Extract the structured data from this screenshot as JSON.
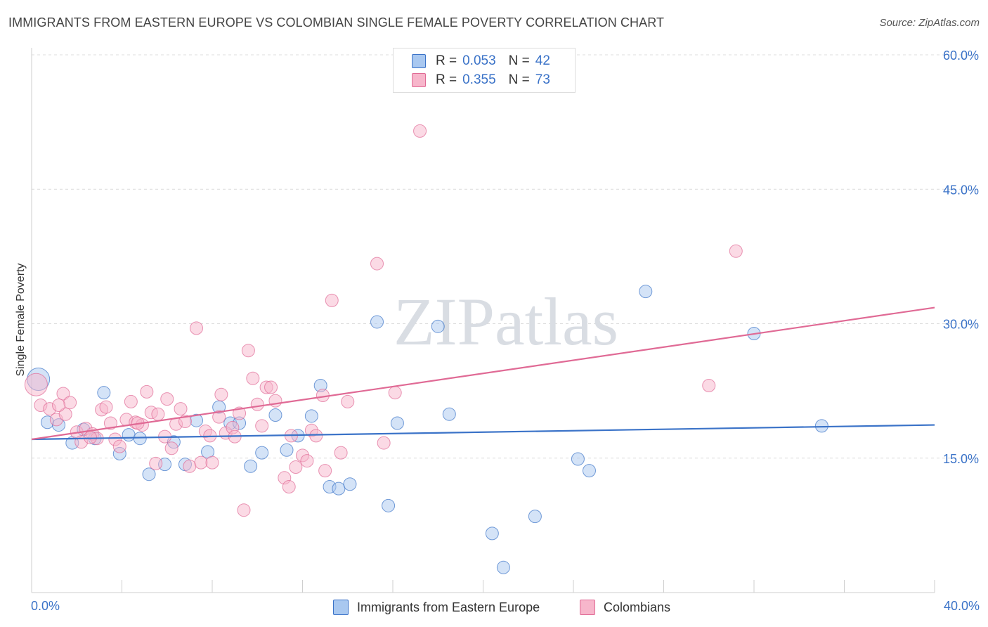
{
  "chart_data": {
    "type": "scatter",
    "title": "IMMIGRANTS FROM EASTERN EUROPE VS COLOMBIAN SINGLE FEMALE POVERTY CORRELATION CHART",
    "source": "Source: ZipAtlas.com",
    "ylabel": "Single Female Poverty",
    "xlim": [
      0,
      40
    ],
    "ylim": [
      0,
      60
    ],
    "x_tick_labels": [
      "0.0%",
      "40.0%"
    ],
    "y_ticks": [
      15,
      30,
      45,
      60
    ],
    "y_tick_labels": [
      "15.0%",
      "30.0%",
      "45.0%",
      "60.0%"
    ],
    "watermark": "ZIPatlas",
    "colors": {
      "blue": "#3b73c8",
      "blue_fill": "#a9c8f0",
      "pink": "#e06a95",
      "pink_fill": "#f7b6cb"
    },
    "legend": [
      {
        "name": "Immigrants from Eastern Europe",
        "r_label": "R =",
        "r": "0.053",
        "n_label": "N =",
        "n": "42"
      },
      {
        "name": "Colombians",
        "r_label": "R =",
        "r": "0.355",
        "n_label": "N =",
        "n": "73"
      }
    ],
    "series": [
      {
        "name": "Immigrants from Eastern Europe",
        "trend": {
          "x": [
            0,
            40
          ],
          "y": [
            17.1,
            18.7
          ]
        },
        "points": [
          {
            "x": 0.3,
            "y": 23.8,
            "big": true
          },
          {
            "x": 0.7,
            "y": 19.0
          },
          {
            "x": 1.2,
            "y": 18.7
          },
          {
            "x": 1.8,
            "y": 16.7
          },
          {
            "x": 2.3,
            "y": 18.2
          },
          {
            "x": 2.8,
            "y": 17.2
          },
          {
            "x": 3.2,
            "y": 22.3
          },
          {
            "x": 3.9,
            "y": 15.5
          },
          {
            "x": 4.3,
            "y": 17.6
          },
          {
            "x": 4.8,
            "y": 17.2
          },
          {
            "x": 5.2,
            "y": 13.2
          },
          {
            "x": 5.9,
            "y": 14.3
          },
          {
            "x": 6.3,
            "y": 16.8
          },
          {
            "x": 6.8,
            "y": 14.3
          },
          {
            "x": 7.3,
            "y": 19.2
          },
          {
            "x": 7.8,
            "y": 15.7
          },
          {
            "x": 8.3,
            "y": 20.7
          },
          {
            "x": 8.8,
            "y": 18.9
          },
          {
            "x": 9.2,
            "y": 18.9
          },
          {
            "x": 9.7,
            "y": 14.1
          },
          {
            "x": 10.2,
            "y": 15.6
          },
          {
            "x": 10.8,
            "y": 19.8
          },
          {
            "x": 11.3,
            "y": 15.9
          },
          {
            "x": 11.8,
            "y": 17.5
          },
          {
            "x": 12.4,
            "y": 19.7
          },
          {
            "x": 12.8,
            "y": 23.1
          },
          {
            "x": 13.2,
            "y": 11.8
          },
          {
            "x": 13.6,
            "y": 11.6
          },
          {
            "x": 14.1,
            "y": 12.1
          },
          {
            "x": 15.3,
            "y": 30.2
          },
          {
            "x": 15.8,
            "y": 9.7
          },
          {
            "x": 16.2,
            "y": 18.9
          },
          {
            "x": 18.0,
            "y": 29.7
          },
          {
            "x": 18.5,
            "y": 19.9
          },
          {
            "x": 20.4,
            "y": 6.6
          },
          {
            "x": 20.9,
            "y": 2.8
          },
          {
            "x": 22.3,
            "y": 8.5
          },
          {
            "x": 24.2,
            "y": 14.9
          },
          {
            "x": 24.7,
            "y": 13.6
          },
          {
            "x": 27.2,
            "y": 33.6
          },
          {
            "x": 32.0,
            "y": 28.9
          },
          {
            "x": 35.0,
            "y": 18.6
          }
        ]
      },
      {
        "name": "Colombians",
        "trend": {
          "x": [
            0,
            40
          ],
          "y": [
            17.1,
            31.8
          ]
        },
        "points": [
          {
            "x": 0.2,
            "y": 23.2,
            "big": true
          },
          {
            "x": 0.4,
            "y": 20.9
          },
          {
            "x": 0.8,
            "y": 20.5
          },
          {
            "x": 1.1,
            "y": 19.3
          },
          {
            "x": 1.4,
            "y": 22.2
          },
          {
            "x": 1.5,
            "y": 19.9
          },
          {
            "x": 1.7,
            "y": 21.2
          },
          {
            "x": 2.0,
            "y": 17.9
          },
          {
            "x": 2.2,
            "y": 16.8
          },
          {
            "x": 2.4,
            "y": 18.3
          },
          {
            "x": 2.7,
            "y": 17.7
          },
          {
            "x": 2.9,
            "y": 17.2
          },
          {
            "x": 3.1,
            "y": 20.4
          },
          {
            "x": 3.3,
            "y": 20.7
          },
          {
            "x": 3.5,
            "y": 18.9
          },
          {
            "x": 3.7,
            "y": 17.1
          },
          {
            "x": 3.9,
            "y": 16.3
          },
          {
            "x": 4.2,
            "y": 19.3
          },
          {
            "x": 4.4,
            "y": 21.3
          },
          {
            "x": 4.6,
            "y": 19.0
          },
          {
            "x": 4.9,
            "y": 18.7
          },
          {
            "x": 5.1,
            "y": 22.4
          },
          {
            "x": 5.3,
            "y": 20.1
          },
          {
            "x": 5.5,
            "y": 14.4
          },
          {
            "x": 5.6,
            "y": 19.9
          },
          {
            "x": 5.9,
            "y": 17.4
          },
          {
            "x": 6.0,
            "y": 21.6
          },
          {
            "x": 6.2,
            "y": 16.1
          },
          {
            "x": 6.4,
            "y": 18.8
          },
          {
            "x": 6.6,
            "y": 20.5
          },
          {
            "x": 6.8,
            "y": 19.1
          },
          {
            "x": 7.0,
            "y": 14.1
          },
          {
            "x": 7.3,
            "y": 29.5
          },
          {
            "x": 7.5,
            "y": 14.5
          },
          {
            "x": 7.7,
            "y": 18.0
          },
          {
            "x": 7.9,
            "y": 17.5
          },
          {
            "x": 8.0,
            "y": 14.5
          },
          {
            "x": 8.3,
            "y": 19.6
          },
          {
            "x": 8.4,
            "y": 22.1
          },
          {
            "x": 8.6,
            "y": 17.8
          },
          {
            "x": 8.9,
            "y": 18.4
          },
          {
            "x": 9.0,
            "y": 17.4
          },
          {
            "x": 9.2,
            "y": 20.0
          },
          {
            "x": 9.4,
            "y": 9.2
          },
          {
            "x": 9.6,
            "y": 27.0
          },
          {
            "x": 9.8,
            "y": 23.9
          },
          {
            "x": 10.0,
            "y": 21.0
          },
          {
            "x": 10.2,
            "y": 18.6
          },
          {
            "x": 10.4,
            "y": 22.9
          },
          {
            "x": 10.6,
            "y": 22.9
          },
          {
            "x": 10.8,
            "y": 21.4
          },
          {
            "x": 11.2,
            "y": 12.8
          },
          {
            "x": 11.4,
            "y": 11.8
          },
          {
            "x": 11.5,
            "y": 17.5
          },
          {
            "x": 11.7,
            "y": 14.0
          },
          {
            "x": 12.0,
            "y": 15.3
          },
          {
            "x": 12.2,
            "y": 14.7
          },
          {
            "x": 12.4,
            "y": 18.1
          },
          {
            "x": 12.6,
            "y": 17.5
          },
          {
            "x": 12.9,
            "y": 22.0
          },
          {
            "x": 13.0,
            "y": 13.6
          },
          {
            "x": 13.3,
            "y": 32.6
          },
          {
            "x": 13.7,
            "y": 15.6
          },
          {
            "x": 14.0,
            "y": 21.3
          },
          {
            "x": 15.3,
            "y": 36.7
          },
          {
            "x": 15.6,
            "y": 16.7
          },
          {
            "x": 16.1,
            "y": 22.3
          },
          {
            "x": 17.2,
            "y": 51.5
          },
          {
            "x": 30.0,
            "y": 23.1
          },
          {
            "x": 31.2,
            "y": 38.1
          },
          {
            "x": 1.2,
            "y": 20.9
          },
          {
            "x": 2.6,
            "y": 17.3
          },
          {
            "x": 4.7,
            "y": 18.9
          }
        ]
      }
    ]
  }
}
